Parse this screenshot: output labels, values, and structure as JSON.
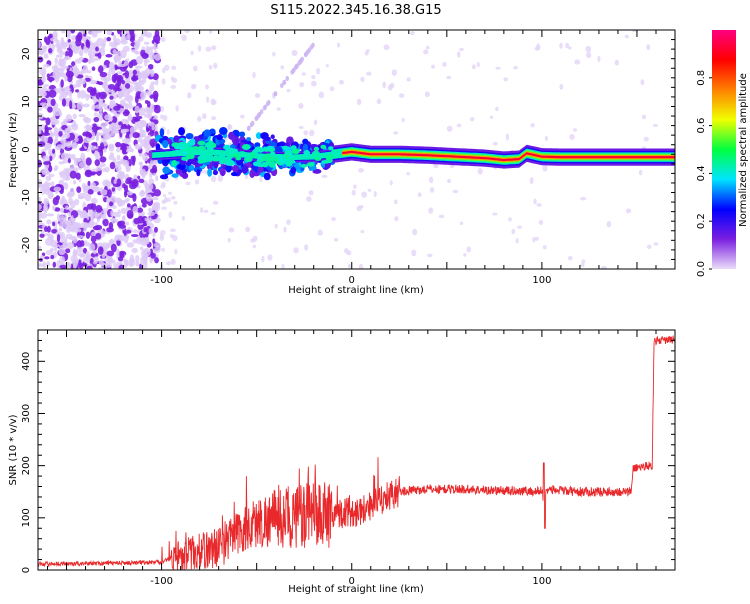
{
  "title": "S115.2022.345.16.38.G15",
  "colors": {
    "snr_line": "#e8282a",
    "spectrogram_band_core": "#e8283c",
    "spectrogram_scatter": "#7a1fe0"
  },
  "chart_data": [
    {
      "type": "heatmap",
      "name": "spectrogram",
      "xlabel": "Height of straight line (km)",
      "ylabel": "Frequency (Hz)",
      "xlim": [
        -165,
        170
      ],
      "ylim": [
        -25,
        25
      ],
      "x_ticks": [
        -100,
        0,
        100
      ],
      "x_tick_labels": [
        "-100",
        "0",
        "100"
      ],
      "y_ticks": [
        -20,
        -10,
        0,
        10,
        20
      ],
      "y_tick_labels": [
        "-20",
        "-10",
        "0",
        "10",
        "20"
      ],
      "band_centerline_hz": [
        [
          -105,
          -1.2
        ],
        [
          -90,
          -0.8
        ],
        [
          -75,
          -0.5
        ],
        [
          -60,
          -1.0
        ],
        [
          -45,
          -1.5
        ],
        [
          -30,
          -1.6
        ],
        [
          -20,
          -1.5
        ],
        [
          -10,
          -1.0
        ],
        [
          0,
          -0.5
        ],
        [
          10,
          -1.0
        ],
        [
          25,
          -1.0
        ],
        [
          40,
          -1.2
        ],
        [
          55,
          -1.5
        ],
        [
          70,
          -1.8
        ],
        [
          80,
          -2.2
        ],
        [
          88,
          -2.0
        ],
        [
          92,
          -0.8
        ],
        [
          100,
          -1.5
        ],
        [
          110,
          -1.6
        ],
        [
          130,
          -1.6
        ],
        [
          150,
          -1.6
        ],
        [
          170,
          -1.6
        ]
      ],
      "colorbar": {
        "label": "Normalized spectral amplitude",
        "range": [
          0,
          1
        ],
        "ticks": [
          0.0,
          0.2,
          0.4,
          0.6,
          0.8
        ],
        "tick_labels": [
          "0.0",
          "0.2",
          "0.4",
          "0.6",
          "0.8"
        ],
        "colormap_stops": [
          "#eadcf8",
          "#7a1fe0",
          "#0000ff",
          "#00e5ff",
          "#00ff40",
          "#f0ff00",
          "#ff8000",
          "#ff0000",
          "#ff0080"
        ]
      }
    },
    {
      "type": "line",
      "name": "snr",
      "xlabel": "Height of straight line (km)",
      "ylabel": "SNR (10 * v/v)",
      "xlim": [
        -165,
        170
      ],
      "ylim": [
        0,
        460
      ],
      "x_ticks": [
        -100,
        0,
        100
      ],
      "x_tick_labels": [
        "-100",
        "0",
        "100"
      ],
      "y_ticks": [
        0,
        100,
        200,
        300,
        400
      ],
      "y_tick_labels": [
        "0",
        "100",
        "200",
        "300",
        "400"
      ],
      "series": [
        {
          "points": [
            [
              -165,
              12
            ],
            [
              -150,
              12
            ],
            [
              -130,
              13
            ],
            [
              -110,
              14
            ],
            [
              -100,
              15
            ],
            [
              -90,
              30
            ],
            [
              -80,
              35
            ],
            [
              -70,
              45
            ],
            [
              -60,
              70
            ],
            [
              -50,
              90
            ],
            [
              -40,
              100
            ],
            [
              -30,
              100
            ],
            [
              -20,
              105
            ],
            [
              -10,
              110
            ],
            [
              0,
              110
            ],
            [
              5,
              115
            ],
            [
              10,
              125
            ],
            [
              15,
              130
            ],
            [
              20,
              145
            ],
            [
              25,
              150
            ],
            [
              30,
              152
            ],
            [
              40,
              155
            ],
            [
              50,
              155
            ],
            [
              60,
              155
            ],
            [
              70,
              153
            ],
            [
              80,
              152
            ],
            [
              90,
              152
            ],
            [
              96,
              150
            ],
            [
              100,
              152
            ],
            [
              101,
              130
            ],
            [
              102,
              155
            ],
            [
              110,
              152
            ],
            [
              120,
              150
            ],
            [
              130,
              150
            ],
            [
              140,
              150
            ],
            [
              147,
              150
            ],
            [
              148,
              195
            ],
            [
              155,
              200
            ],
            [
              158,
              200
            ],
            [
              159,
              440
            ],
            [
              165,
              440
            ],
            [
              170,
              442
            ]
          ]
        }
      ]
    }
  ]
}
